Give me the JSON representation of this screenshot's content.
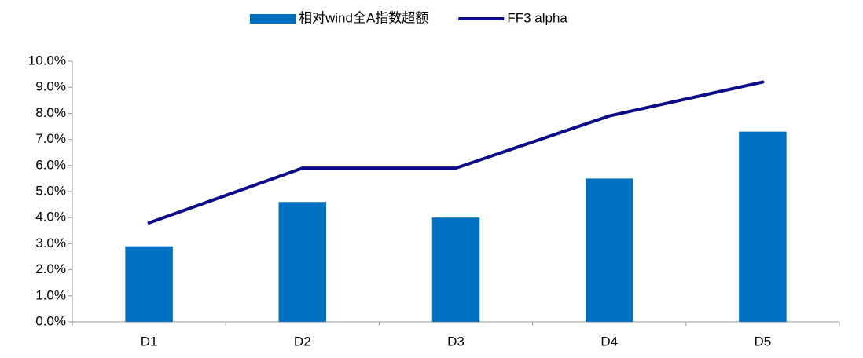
{
  "chart_data": {
    "type": "bar",
    "categories": [
      "D1",
      "D2",
      "D3",
      "D4",
      "D5"
    ],
    "series": [
      {
        "name": "相对wind全A指数超额",
        "type": "bar",
        "color": "#0070c0",
        "values": [
          2.9,
          4.6,
          4.0,
          5.5,
          7.3
        ]
      },
      {
        "name": "FF3 alpha",
        "type": "line",
        "color": "#0b0b8a",
        "values": [
          3.8,
          5.9,
          5.9,
          7.9,
          9.2
        ]
      }
    ],
    "ylim": [
      0,
      10
    ],
    "yticks": [
      {
        "value": 0,
        "label": "0.0%"
      },
      {
        "value": 1,
        "label": "1.0%"
      },
      {
        "value": 2,
        "label": "2.0%"
      },
      {
        "value": 3,
        "label": "3.0%"
      },
      {
        "value": 4,
        "label": "4.0%"
      },
      {
        "value": 5,
        "label": "5.0%"
      },
      {
        "value": 6,
        "label": "6.0%"
      },
      {
        "value": 7,
        "label": "7.0%"
      },
      {
        "value": 8,
        "label": "8.0%"
      },
      {
        "value": 9,
        "label": "9.0%"
      },
      {
        "value": 10,
        "label": "10.0%"
      }
    ],
    "grid": false,
    "legend": "top"
  }
}
